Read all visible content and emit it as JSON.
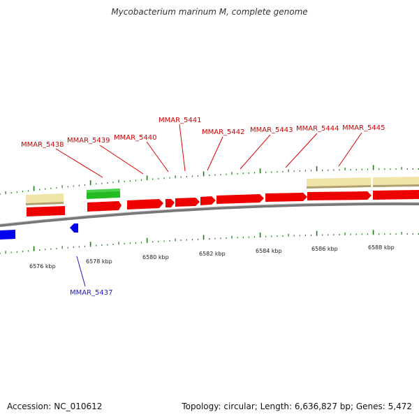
{
  "title": "Mycobacterium marinum M, complete genome",
  "footer": {
    "accession": "Accession: NC_010612",
    "summary": "Topology: circular; Length: 6,636,827 bp; Genes: 5,472"
  },
  "colors": {
    "forward_gene": "#ee0000",
    "reverse_gene": "#0000ee",
    "rna_gene": "#22bb22",
    "pseudo_region": "#f0e4a8",
    "axis": "#888888",
    "tick": "#1a7a1a"
  },
  "scale_labels": [
    {
      "kbp": 6576,
      "text": "6576 kbp"
    },
    {
      "kbp": 6578,
      "text": "6578 kbp"
    },
    {
      "kbp": 6580,
      "text": "6580 kbp"
    },
    {
      "kbp": 6582,
      "text": "6582 kbp"
    },
    {
      "kbp": 6584,
      "text": "6584 kbp"
    },
    {
      "kbp": 6586,
      "text": "6586 kbp"
    },
    {
      "kbp": 6588,
      "text": "6588 kbp"
    }
  ],
  "gene_labels": [
    {
      "name": "MMAR_5438",
      "strand": "forward"
    },
    {
      "name": "MMAR_5439",
      "strand": "forward"
    },
    {
      "name": "MMAR_5440",
      "strand": "forward"
    },
    {
      "name": "MMAR_5441",
      "strand": "forward"
    },
    {
      "name": "MMAR_5442",
      "strand": "forward"
    },
    {
      "name": "MMAR_5443",
      "strand": "forward"
    },
    {
      "name": "MMAR_5444",
      "strand": "forward"
    },
    {
      "name": "MMAR_5445",
      "strand": "forward"
    },
    {
      "name": "MMAR_5437",
      "strand": "reverse"
    }
  ]
}
